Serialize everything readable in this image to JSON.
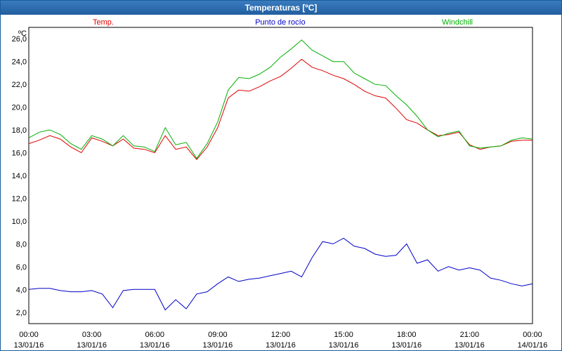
{
  "window": {
    "title": "Temperaturas [ºC]"
  },
  "chart_data": {
    "type": "line",
    "title": "Temperaturas [ºC]",
    "unit_label": "ºC",
    "ylim": [
      1,
      27
    ],
    "yticks": [
      2,
      4,
      6,
      8,
      10,
      12,
      14,
      16,
      18,
      20,
      22,
      24,
      26
    ],
    "ytick_labels": [
      "2,0",
      "4,0",
      "6,0",
      "8,0",
      "10,0",
      "12,0",
      "14,0",
      "16,0",
      "18,0",
      "20,0",
      "22,0",
      "24,0",
      "26,0"
    ],
    "xlim": [
      0,
      24
    ],
    "xticks": [
      0,
      3,
      6,
      9,
      12,
      15,
      18,
      21,
      24
    ],
    "xtick_times": [
      "00:00",
      "03:00",
      "06:00",
      "09:00",
      "12:00",
      "15:00",
      "18:00",
      "21:00",
      "00:00"
    ],
    "xtick_dates": [
      "13/01/16",
      "13/01/16",
      "13/01/16",
      "13/01/16",
      "13/01/16",
      "13/01/16",
      "13/01/16",
      "13/01/16",
      "14/01/16"
    ],
    "grid": true,
    "legend_position": "top",
    "series": [
      {
        "name": "Temp.",
        "color": "#e00000",
        "x": [
          0,
          0.5,
          1,
          1.5,
          2,
          2.5,
          3,
          3.5,
          4,
          4.5,
          5,
          5.5,
          6,
          6.5,
          7,
          7.5,
          8,
          8.5,
          9,
          9.5,
          10,
          10.5,
          11,
          11.5,
          12,
          12.5,
          13,
          13.5,
          14,
          14.5,
          15,
          15.5,
          16,
          16.5,
          17,
          17.5,
          18,
          18.5,
          19,
          19.5,
          20,
          20.5,
          21,
          21.5,
          22,
          22.5,
          23,
          23.5,
          24
        ],
        "y": [
          16.8,
          17.1,
          17.5,
          17.2,
          16.5,
          16.0,
          17.3,
          17.0,
          16.6,
          17.2,
          16.4,
          16.3,
          16.0,
          17.5,
          16.3,
          16.5,
          15.4,
          16.5,
          18.2,
          20.8,
          21.5,
          21.4,
          21.8,
          22.3,
          22.7,
          23.4,
          24.2,
          23.5,
          23.2,
          22.8,
          22.5,
          22.0,
          21.4,
          21.0,
          20.8,
          19.9,
          18.9,
          18.6,
          18.0,
          17.5,
          17.6,
          17.8,
          16.7,
          16.3,
          16.5,
          16.6,
          17.0,
          17.1,
          17.1
        ]
      },
      {
        "name": "Punto de rocío",
        "color": "#0000c8",
        "x": [
          0,
          0.5,
          1,
          1.5,
          2,
          2.5,
          3,
          3.5,
          4,
          4.5,
          5,
          5.5,
          6,
          6.5,
          7,
          7.5,
          8,
          8.5,
          9,
          9.5,
          10,
          10.5,
          11,
          11.5,
          12,
          12.5,
          13,
          13.5,
          14,
          14.5,
          15,
          15.5,
          16,
          16.5,
          17,
          17.5,
          18,
          18.5,
          19,
          19.5,
          20,
          20.5,
          21,
          21.5,
          22,
          22.5,
          23,
          23.5,
          24
        ],
        "y": [
          4.0,
          4.1,
          4.1,
          3.9,
          3.8,
          3.8,
          3.9,
          3.6,
          2.4,
          3.9,
          4.0,
          4.0,
          4.0,
          2.2,
          3.1,
          2.3,
          3.6,
          3.8,
          4.5,
          5.1,
          4.7,
          4.9,
          5.0,
          5.2,
          5.4,
          5.6,
          5.1,
          6.8,
          8.2,
          8.0,
          8.5,
          7.8,
          7.6,
          7.1,
          6.9,
          7.0,
          8.0,
          6.3,
          6.6,
          5.6,
          6.0,
          5.7,
          5.9,
          5.7,
          5.0,
          4.8,
          4.5,
          4.3,
          4.5
        ]
      },
      {
        "name": "Windchill",
        "color": "#00b000",
        "x": [
          0,
          0.5,
          1,
          1.5,
          2,
          2.5,
          3,
          3.5,
          4,
          4.5,
          5,
          5.5,
          6,
          6.5,
          7,
          7.5,
          8,
          8.5,
          9,
          9.5,
          10,
          10.5,
          11,
          11.5,
          12,
          12.5,
          13,
          13.5,
          14,
          14.5,
          15,
          15.5,
          16,
          16.5,
          17,
          17.5,
          18,
          18.5,
          19,
          19.5,
          20,
          20.5,
          21,
          21.5,
          22,
          22.5,
          23,
          23.5,
          24
        ],
        "y": [
          17.3,
          17.8,
          18.0,
          17.6,
          16.8,
          16.3,
          17.5,
          17.2,
          16.6,
          17.5,
          16.6,
          16.5,
          16.1,
          18.2,
          16.7,
          16.9,
          15.5,
          16.8,
          18.7,
          21.5,
          22.6,
          22.5,
          22.9,
          23.5,
          24.4,
          25.1,
          25.9,
          25.0,
          24.5,
          24.0,
          24.0,
          23.0,
          22.5,
          22.0,
          21.9,
          21.0,
          20.2,
          19.2,
          18.0,
          17.4,
          17.7,
          17.9,
          16.6,
          16.4,
          16.5,
          16.6,
          17.1,
          17.3,
          17.2
        ]
      }
    ]
  }
}
